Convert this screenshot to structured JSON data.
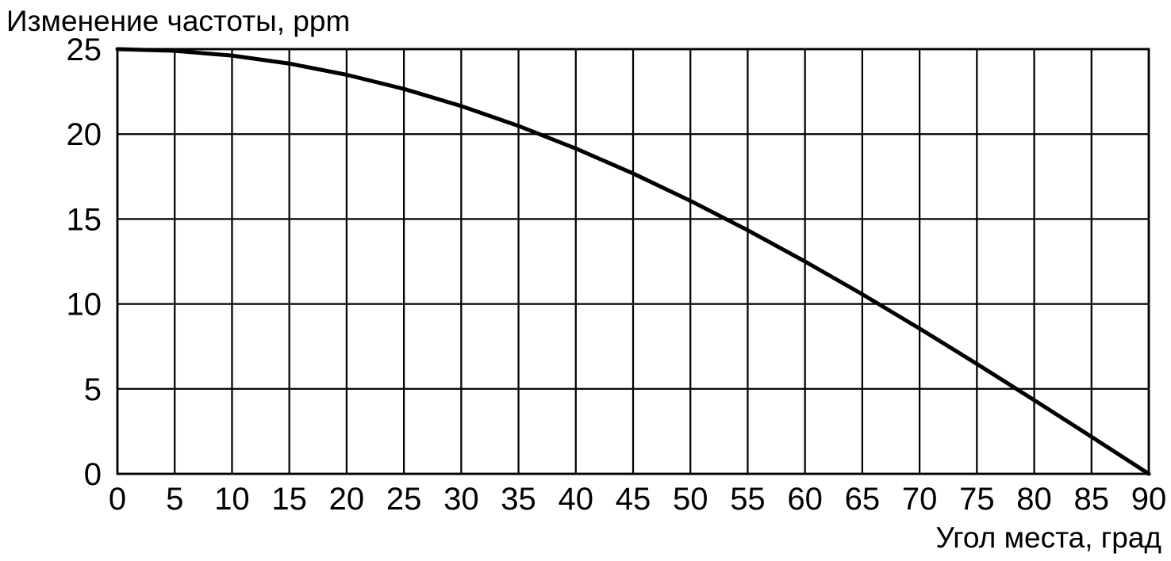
{
  "chart_data": {
    "type": "line",
    "title": "Изменение частоты, ppm",
    "xlabel": "Угол места, град",
    "ylabel": "Изменение частоты, ppm",
    "xlim": [
      0,
      90
    ],
    "ylim": [
      0,
      25
    ],
    "x_ticks": [
      0,
      5,
      10,
      15,
      20,
      25,
      30,
      35,
      40,
      45,
      50,
      55,
      60,
      65,
      70,
      75,
      80,
      85,
      90
    ],
    "y_ticks": [
      0,
      5,
      10,
      15,
      20,
      25
    ],
    "grid": true,
    "legend": "none",
    "series": [
      {
        "name": "frequency-change-vs-elevation",
        "color": "#000000",
        "x": [
          0,
          5,
          10,
          15,
          20,
          25,
          30,
          35,
          40,
          45,
          50,
          55,
          60,
          65,
          70,
          75,
          80,
          85,
          90
        ],
        "y": [
          25.0,
          24.9,
          24.62,
          24.15,
          23.49,
          22.66,
          21.65,
          20.48,
          19.15,
          17.68,
          16.07,
          14.34,
          12.5,
          10.57,
          8.55,
          6.47,
          4.34,
          2.18,
          0.0
        ]
      }
    ]
  },
  "colors": {
    "background": "#ffffff",
    "grid": "#000000",
    "border": "#000000",
    "curve": "#000000",
    "text": "#000000"
  }
}
